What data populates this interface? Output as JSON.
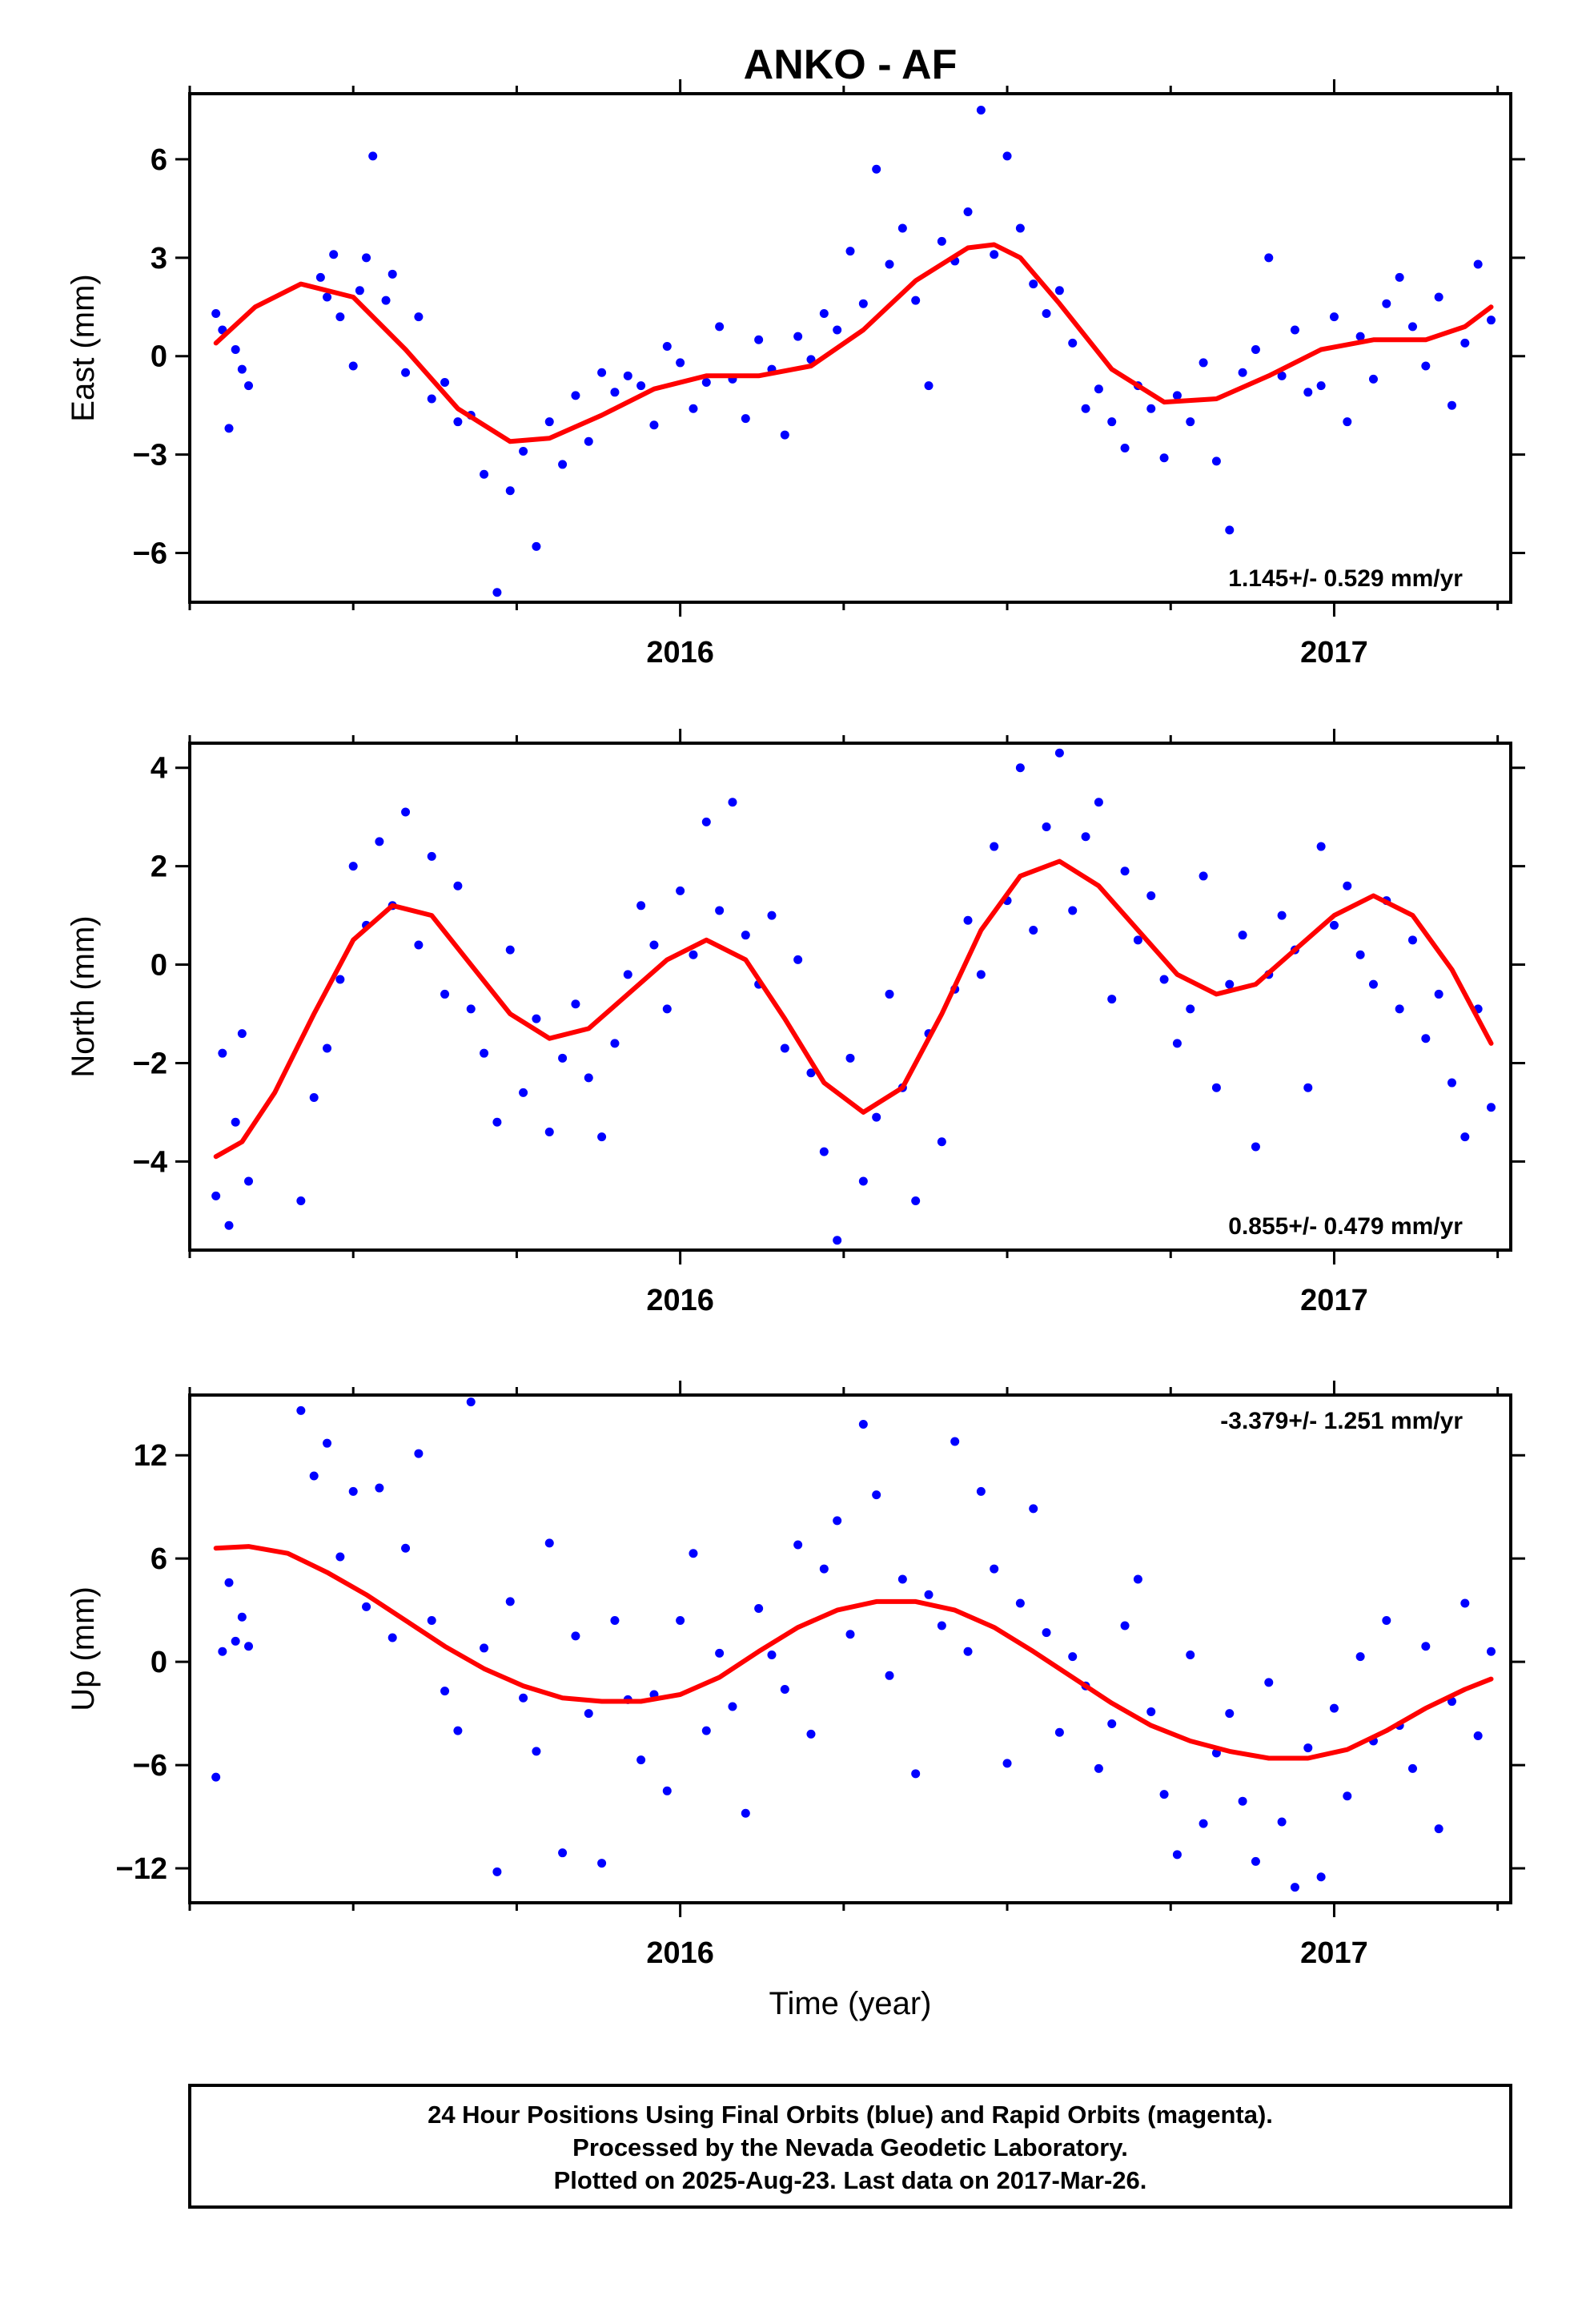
{
  "title": "ANKO - AF",
  "xlabel": "Time (year)",
  "footer": {
    "line1": "24 Hour Positions Using Final Orbits (blue) and Rapid Orbits (magenta).",
    "line2": "Processed by the Nevada Geodetic Laboratory.",
    "line3": "Plotted on 2025-Aug-23. Last data on 2017-Mar-26."
  },
  "colors": {
    "points": "#0000ff",
    "fit": "#ff0000",
    "axes": "#000000"
  },
  "chart_data": [
    {
      "type": "scatter",
      "panel": "east",
      "ylabel": "East (mm)",
      "rate_label": "1.145+/- 0.529 mm/yr",
      "rate_position": "bottom-right",
      "xlim": [
        2015.25,
        2017.27
      ],
      "ylim": [
        -7.5,
        8
      ],
      "yticks": [
        -6,
        -3,
        0,
        3,
        6
      ],
      "xticks": [
        2016,
        2017
      ],
      "series": [
        {
          "kind": "points",
          "points_generated_around_fit": true,
          "x": [
            2015.29,
            2015.3,
            2015.31,
            2015.32,
            2015.33,
            2015.34,
            2015.45,
            2015.46,
            2015.47,
            2015.48,
            2015.5,
            2015.51,
            2015.52,
            2015.53,
            2015.55,
            2015.56,
            2015.58,
            2015.6,
            2015.62,
            2015.64,
            2015.66,
            2015.68,
            2015.7,
            2015.72,
            2015.74,
            2015.76,
            2015.78,
            2015.8,
            2015.82,
            2015.84,
            2015.86,
            2015.88,
            2015.9,
            2015.92,
            2015.94,
            2015.96,
            2015.98,
            2016.0,
            2016.02,
            2016.04,
            2016.06,
            2016.08,
            2016.1,
            2016.12,
            2016.14,
            2016.16,
            2016.18,
            2016.2,
            2016.22,
            2016.24,
            2016.26,
            2016.28,
            2016.3,
            2016.32,
            2016.34,
            2016.36,
            2016.38,
            2016.4,
            2016.42,
            2016.44,
            2016.46,
            2016.48,
            2016.5,
            2016.52,
            2016.54,
            2016.56,
            2016.58,
            2016.6,
            2016.62,
            2016.64,
            2016.66,
            2016.68,
            2016.7,
            2016.72,
            2016.74,
            2016.76,
            2016.78,
            2016.8,
            2016.82,
            2016.84,
            2016.86,
            2016.88,
            2016.9,
            2016.92,
            2016.94,
            2016.96,
            2016.98,
            2017.0,
            2017.02,
            2017.04,
            2017.06,
            2017.08,
            2017.1,
            2017.12,
            2017.14,
            2017.16,
            2017.18,
            2017.2,
            2017.22,
            2017.24
          ],
          "y": [
            1.3,
            0.8,
            -2.2,
            0.2,
            -0.4,
            -0.9,
            2.4,
            1.8,
            3.1,
            1.2,
            -0.3,
            2.0,
            3.0,
            6.1,
            1.7,
            2.5,
            -0.5,
            1.2,
            -1.3,
            -0.8,
            -2.0,
            -1.8,
            -3.6,
            -7.2,
            -4.1,
            -2.9,
            -5.8,
            -2.0,
            -3.3,
            -1.2,
            -2.6,
            -0.5,
            -1.1,
            -0.6,
            -0.9,
            -2.1,
            0.3,
            -0.2,
            -1.6,
            -0.8,
            0.9,
            -0.7,
            -1.9,
            0.5,
            -0.4,
            -2.4,
            0.6,
            -0.1,
            1.3,
            0.8,
            3.2,
            1.6,
            5.7,
            2.8,
            3.9,
            1.7,
            -0.9,
            3.5,
            2.9,
            4.4,
            7.5,
            3.1,
            6.1,
            3.9,
            2.2,
            1.3,
            2.0,
            0.4,
            -1.6,
            -1.0,
            -2.0,
            -2.8,
            -0.9,
            -1.6,
            -3.1,
            -1.2,
            -2.0,
            -0.2,
            -3.2,
            -5.3,
            -0.5,
            0.2,
            3.0,
            -0.6,
            0.8,
            -1.1,
            -0.9,
            1.2,
            -2.0,
            0.6,
            -0.7,
            1.6,
            2.4,
            0.9,
            -0.3,
            1.8,
            -1.5,
            0.4,
            2.8,
            1.1
          ]
        },
        {
          "kind": "fit",
          "x": [
            2015.29,
            2015.35,
            2015.42,
            2015.5,
            2015.58,
            2015.66,
            2015.74,
            2015.8,
            2015.88,
            2015.96,
            2016.04,
            2016.12,
            2016.2,
            2016.28,
            2016.36,
            2016.44,
            2016.48,
            2016.52,
            2016.58,
            2016.66,
            2016.74,
            2016.82,
            2016.9,
            2016.98,
            2017.06,
            2017.14,
            2017.2,
            2017.24
          ],
          "y": [
            0.4,
            1.5,
            2.2,
            1.8,
            0.2,
            -1.6,
            -2.6,
            -2.5,
            -1.8,
            -1.0,
            -0.6,
            -0.6,
            -0.3,
            0.8,
            2.3,
            3.3,
            3.4,
            3.0,
            1.6,
            -0.4,
            -1.4,
            -1.3,
            -0.6,
            0.2,
            0.5,
            0.5,
            0.9,
            1.5
          ]
        }
      ]
    },
    {
      "type": "scatter",
      "panel": "north",
      "ylabel": "North (mm)",
      "rate_label": "0.855+/- 0.479 mm/yr",
      "rate_position": "bottom-right",
      "xlim": [
        2015.25,
        2017.27
      ],
      "ylim": [
        -5.8,
        4.5
      ],
      "yticks": [
        -4,
        -2,
        0,
        2,
        4
      ],
      "xticks": [
        2016,
        2017
      ],
      "series": [
        {
          "kind": "points",
          "points_generated_around_fit": true,
          "x": [
            2015.29,
            2015.3,
            2015.31,
            2015.32,
            2015.33,
            2015.34,
            2015.42,
            2015.44,
            2015.46,
            2015.48,
            2015.5,
            2015.52,
            2015.54,
            2015.56,
            2015.58,
            2015.6,
            2015.62,
            2015.64,
            2015.66,
            2015.68,
            2015.7,
            2015.72,
            2015.74,
            2015.76,
            2015.78,
            2015.8,
            2015.82,
            2015.84,
            2015.86,
            2015.88,
            2015.9,
            2015.92,
            2015.94,
            2015.96,
            2015.98,
            2016.0,
            2016.02,
            2016.04,
            2016.06,
            2016.08,
            2016.1,
            2016.12,
            2016.14,
            2016.16,
            2016.18,
            2016.2,
            2016.22,
            2016.24,
            2016.26,
            2016.28,
            2016.3,
            2016.32,
            2016.34,
            2016.36,
            2016.38,
            2016.4,
            2016.42,
            2016.44,
            2016.46,
            2016.48,
            2016.5,
            2016.52,
            2016.54,
            2016.56,
            2016.58,
            2016.6,
            2016.62,
            2016.64,
            2016.66,
            2016.68,
            2016.7,
            2016.72,
            2016.74,
            2016.76,
            2016.78,
            2016.8,
            2016.82,
            2016.84,
            2016.86,
            2016.88,
            2016.9,
            2016.92,
            2016.94,
            2016.96,
            2016.98,
            2017.0,
            2017.02,
            2017.04,
            2017.06,
            2017.08,
            2017.1,
            2017.12,
            2017.14,
            2017.16,
            2017.18,
            2017.2,
            2017.22,
            2017.24
          ],
          "y": [
            -4.7,
            -1.8,
            -5.3,
            -3.2,
            -1.4,
            -4.4,
            -4.8,
            -2.7,
            -1.7,
            -0.3,
            2.0,
            0.8,
            2.5,
            1.2,
            3.1,
            0.4,
            2.2,
            -0.6,
            1.6,
            -0.9,
            -1.8,
            -3.2,
            0.3,
            -2.6,
            -1.1,
            -3.4,
            -1.9,
            -0.8,
            -2.3,
            -3.5,
            -1.6,
            -0.2,
            1.2,
            0.4,
            -0.9,
            1.5,
            0.2,
            2.9,
            1.1,
            3.3,
            0.6,
            -0.4,
            1.0,
            -1.7,
            0.1,
            -2.2,
            -3.8,
            -5.6,
            -1.9,
            -4.4,
            -3.1,
            -0.6,
            -2.5,
            -4.8,
            -1.4,
            -3.6,
            -0.5,
            0.9,
            -0.2,
            2.4,
            1.3,
            4.0,
            0.7,
            2.8,
            4.3,
            1.1,
            2.6,
            3.3,
            -0.7,
            1.9,
            0.5,
            1.4,
            -0.3,
            -1.6,
            -0.9,
            1.8,
            -2.5,
            -0.4,
            0.6,
            -3.7,
            -0.2,
            1.0,
            0.3,
            -2.5,
            2.4,
            0.8,
            1.6,
            0.2,
            -0.4,
            1.3,
            -0.9,
            0.5,
            -1.5,
            -0.6,
            -2.4,
            -3.5,
            -0.9,
            -2.9
          ]
        },
        {
          "kind": "fit",
          "x": [
            2015.29,
            2015.33,
            2015.38,
            2015.44,
            2015.5,
            2015.56,
            2015.62,
            2015.68,
            2015.74,
            2015.8,
            2015.86,
            2015.92,
            2015.98,
            2016.04,
            2016.1,
            2016.16,
            2016.22,
            2016.28,
            2016.34,
            2016.4,
            2016.46,
            2016.52,
            2016.58,
            2016.64,
            2016.7,
            2016.76,
            2016.82,
            2016.88,
            2016.94,
            2017.0,
            2017.06,
            2017.12,
            2017.18,
            2017.24
          ],
          "y": [
            -3.9,
            -3.6,
            -2.6,
            -1.0,
            0.5,
            1.2,
            1.0,
            0.0,
            -1.0,
            -1.5,
            -1.3,
            -0.6,
            0.1,
            0.5,
            0.1,
            -1.1,
            -2.4,
            -3.0,
            -2.5,
            -1.0,
            0.7,
            1.8,
            2.1,
            1.6,
            0.7,
            -0.2,
            -0.6,
            -0.4,
            0.3,
            1.0,
            1.4,
            1.0,
            -0.1,
            -1.6
          ]
        }
      ]
    },
    {
      "type": "scatter",
      "panel": "up",
      "ylabel": "Up (mm)",
      "rate_label": "-3.379+/- 1.251 mm/yr",
      "rate_position": "top-right",
      "xlim": [
        2015.25,
        2017.27
      ],
      "ylim": [
        -14,
        15.5
      ],
      "yticks": [
        -12,
        -6,
        0,
        6,
        12
      ],
      "xticks": [
        2016,
        2017
      ],
      "series": [
        {
          "kind": "points",
          "points_generated_around_fit": true,
          "x": [
            2015.29,
            2015.3,
            2015.31,
            2015.32,
            2015.33,
            2015.34,
            2015.42,
            2015.44,
            2015.46,
            2015.48,
            2015.5,
            2015.52,
            2015.54,
            2015.56,
            2015.58,
            2015.6,
            2015.62,
            2015.64,
            2015.66,
            2015.68,
            2015.7,
            2015.72,
            2015.74,
            2015.76,
            2015.78,
            2015.8,
            2015.82,
            2015.84,
            2015.86,
            2015.88,
            2015.9,
            2015.92,
            2015.94,
            2015.96,
            2015.98,
            2016.0,
            2016.02,
            2016.04,
            2016.06,
            2016.08,
            2016.1,
            2016.12,
            2016.14,
            2016.16,
            2016.18,
            2016.2,
            2016.22,
            2016.24,
            2016.26,
            2016.28,
            2016.3,
            2016.32,
            2016.34,
            2016.36,
            2016.38,
            2016.4,
            2016.42,
            2016.44,
            2016.46,
            2016.48,
            2016.5,
            2016.52,
            2016.54,
            2016.56,
            2016.58,
            2016.6,
            2016.62,
            2016.64,
            2016.66,
            2016.68,
            2016.7,
            2016.72,
            2016.74,
            2016.76,
            2016.78,
            2016.8,
            2016.82,
            2016.84,
            2016.86,
            2016.88,
            2016.9,
            2016.92,
            2016.94,
            2016.96,
            2016.98,
            2017.0,
            2017.02,
            2017.04,
            2017.06,
            2017.08,
            2017.1,
            2017.12,
            2017.14,
            2017.16,
            2017.18,
            2017.2,
            2017.22,
            2017.24
          ],
          "y": [
            -6.7,
            0.6,
            4.6,
            1.2,
            2.6,
            0.9,
            14.6,
            10.8,
            12.7,
            6.1,
            9.9,
            3.2,
            10.1,
            1.4,
            6.6,
            12.1,
            2.4,
            -1.7,
            -4.0,
            15.1,
            0.8,
            -12.2,
            3.5,
            -2.1,
            -5.2,
            6.9,
            -11.1,
            1.5,
            -3.0,
            -11.7,
            2.4,
            -2.2,
            -5.7,
            -1.9,
            -7.5,
            2.4,
            6.3,
            -4.0,
            0.5,
            -2.6,
            -8.8,
            3.1,
            0.4,
            -1.6,
            6.8,
            -4.2,
            5.4,
            8.2,
            1.6,
            13.8,
            9.7,
            -0.8,
            4.8,
            -6.5,
            3.9,
            2.1,
            12.8,
            0.6,
            9.9,
            5.4,
            -5.9,
            3.4,
            8.9,
            1.7,
            -4.1,
            0.3,
            -1.4,
            -6.2,
            -3.6,
            2.1,
            4.8,
            -2.9,
            -7.7,
            -11.2,
            0.4,
            -9.4,
            -5.3,
            -3.0,
            -8.1,
            -11.6,
            -1.2,
            -9.3,
            -13.1,
            -5.0,
            -12.5,
            -2.7,
            -7.8,
            0.3,
            -4.6,
            2.4,
            -3.7,
            -6.2,
            0.9,
            -9.7,
            -2.3,
            3.4,
            -4.3,
            0.6
          ]
        },
        {
          "kind": "fit",
          "x": [
            2015.29,
            2015.34,
            2015.4,
            2015.46,
            2015.52,
            2015.58,
            2015.64,
            2015.7,
            2015.76,
            2015.82,
            2015.88,
            2015.94,
            2016.0,
            2016.06,
            2016.12,
            2016.18,
            2016.24,
            2016.3,
            2016.36,
            2016.42,
            2016.48,
            2016.54,
            2016.6,
            2016.66,
            2016.72,
            2016.78,
            2016.84,
            2016.9,
            2016.96,
            2017.02,
            2017.08,
            2017.14,
            2017.2,
            2017.24
          ],
          "y": [
            6.6,
            6.7,
            6.3,
            5.2,
            3.9,
            2.4,
            0.9,
            -0.4,
            -1.4,
            -2.1,
            -2.3,
            -2.3,
            -1.9,
            -0.9,
            0.6,
            2.0,
            3.0,
            3.5,
            3.5,
            3.0,
            2.0,
            0.6,
            -0.9,
            -2.4,
            -3.7,
            -4.6,
            -5.2,
            -5.6,
            -5.6,
            -5.1,
            -4.0,
            -2.7,
            -1.6,
            -1.0
          ]
        }
      ]
    }
  ]
}
